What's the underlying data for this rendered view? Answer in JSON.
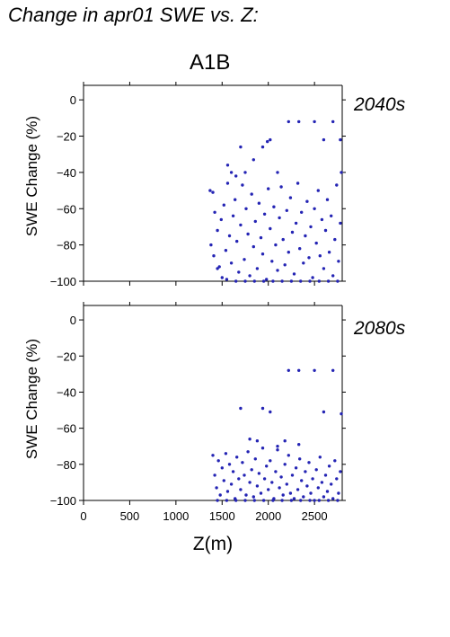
{
  "figure_title": "Change in apr01 SWE vs. Z:",
  "scenario": "A1B",
  "xlabel": "Z(m)",
  "point_color": "#2424b4",
  "chart_data": [
    {
      "type": "scatter",
      "period": "2040s",
      "ylabel": "SWE Change (%)",
      "xlim": [
        0,
        2800
      ],
      "ylim": [
        -100,
        8
      ],
      "x_ticks": [
        0,
        500,
        1000,
        1500,
        2000,
        2500
      ],
      "y_ticks": [
        0,
        -20,
        -40,
        -60,
        -80,
        -100
      ],
      "grid": false,
      "points": [
        [
          1370,
          -50
        ],
        [
          1400,
          -51
        ],
        [
          1420,
          -62
        ],
        [
          1380,
          -80
        ],
        [
          1410,
          -86
        ],
        [
          1450,
          -72
        ],
        [
          1470,
          -92
        ],
        [
          1490,
          -66
        ],
        [
          1500,
          -98
        ],
        [
          1520,
          -58
        ],
        [
          1540,
          -83
        ],
        [
          1560,
          -46
        ],
        [
          1580,
          -75
        ],
        [
          1600,
          -90
        ],
        [
          1620,
          -64
        ],
        [
          1640,
          -55
        ],
        [
          1660,
          -78
        ],
        [
          1680,
          -95
        ],
        [
          1700,
          -69
        ],
        [
          1720,
          -47
        ],
        [
          1740,
          -88
        ],
        [
          1760,
          -60
        ],
        [
          1780,
          -74
        ],
        [
          1800,
          -97
        ],
        [
          1820,
          -52
        ],
        [
          1840,
          -81
        ],
        [
          1860,
          -67
        ],
        [
          1880,
          -93
        ],
        [
          1900,
          -57
        ],
        [
          1920,
          -76
        ],
        [
          1940,
          -85
        ],
        [
          1960,
          -63
        ],
        [
          1980,
          -99
        ],
        [
          2000,
          -49
        ],
        [
          2020,
          -71
        ],
        [
          2040,
          -89
        ],
        [
          2060,
          -59
        ],
        [
          2080,
          -80
        ],
        [
          2100,
          -94
        ],
        [
          2120,
          -65
        ],
        [
          2140,
          -48
        ],
        [
          2160,
          -77
        ],
        [
          2180,
          -91
        ],
        [
          2200,
          -61
        ],
        [
          2220,
          -84
        ],
        [
          2240,
          -54
        ],
        [
          2260,
          -73
        ],
        [
          2280,
          -96
        ],
        [
          2300,
          -68
        ],
        [
          2320,
          -46
        ],
        [
          2340,
          -82
        ],
        [
          2360,
          -62
        ],
        [
          2380,
          -90
        ],
        [
          2400,
          -75
        ],
        [
          2420,
          -56
        ],
        [
          2440,
          -87
        ],
        [
          2460,
          -70
        ],
        [
          2480,
          -98
        ],
        [
          2500,
          -60
        ],
        [
          2520,
          -79
        ],
        [
          2540,
          -50
        ],
        [
          2560,
          -86
        ],
        [
          2580,
          -66
        ],
        [
          2600,
          -93
        ],
        [
          2620,
          -72
        ],
        [
          2640,
          -55
        ],
        [
          2660,
          -84
        ],
        [
          2680,
          -64
        ],
        [
          2700,
          -97
        ],
        [
          2720,
          -77
        ],
        [
          2740,
          -47
        ],
        [
          2760,
          -89
        ],
        [
          2780,
          -68
        ],
        [
          1700,
          -26
        ],
        [
          1840,
          -33
        ],
        [
          1940,
          -26
        ],
        [
          1990,
          -23
        ],
        [
          2020,
          -22
        ],
        [
          2220,
          -12
        ],
        [
          2330,
          -12
        ],
        [
          2500,
          -12
        ],
        [
          2700,
          -12
        ],
        [
          2600,
          -22
        ],
        [
          2780,
          -22
        ],
        [
          2790,
          -40
        ],
        [
          1560,
          -36
        ],
        [
          1600,
          -40
        ],
        [
          1650,
          -42
        ],
        [
          1750,
          -40
        ],
        [
          2100,
          -40
        ],
        [
          1450,
          -93
        ],
        [
          1550,
          -99
        ],
        [
          1650,
          -100
        ],
        [
          1750,
          -100
        ],
        [
          1850,
          -100
        ],
        [
          1950,
          -100
        ],
        [
          2050,
          -100
        ],
        [
          2150,
          -100
        ],
        [
          2250,
          -100
        ],
        [
          2350,
          -100
        ],
        [
          2450,
          -100
        ],
        [
          2550,
          -100
        ],
        [
          2650,
          -100
        ],
        [
          2750,
          -100
        ]
      ]
    },
    {
      "type": "scatter",
      "period": "2080s",
      "ylabel": "SWE Change (%)",
      "xlim": [
        0,
        2800
      ],
      "ylim": [
        -100,
        8
      ],
      "x_ticks": [
        0,
        500,
        1000,
        1500,
        2000,
        2500
      ],
      "y_ticks": [
        0,
        -20,
        -40,
        -60,
        -80,
        -100
      ],
      "grid": false,
      "points": [
        [
          1400,
          -75
        ],
        [
          1420,
          -86
        ],
        [
          1440,
          -93
        ],
        [
          1460,
          -78
        ],
        [
          1480,
          -97
        ],
        [
          1500,
          -82
        ],
        [
          1520,
          -89
        ],
        [
          1540,
          -74
        ],
        [
          1560,
          -95
        ],
        [
          1580,
          -80
        ],
        [
          1600,
          -91
        ],
        [
          1620,
          -84
        ],
        [
          1640,
          -99
        ],
        [
          1660,
          -76
        ],
        [
          1680,
          -88
        ],
        [
          1700,
          -94
        ],
        [
          1720,
          -79
        ],
        [
          1740,
          -86
        ],
        [
          1760,
          -97
        ],
        [
          1780,
          -73
        ],
        [
          1800,
          -90
        ],
        [
          1820,
          -83
        ],
        [
          1840,
          -98
        ],
        [
          1860,
          -77
        ],
        [
          1880,
          -92
        ],
        [
          1900,
          -85
        ],
        [
          1920,
          -96
        ],
        [
          1940,
          -71
        ],
        [
          1960,
          -88
        ],
        [
          1980,
          -81
        ],
        [
          2000,
          -94
        ],
        [
          2020,
          -78
        ],
        [
          2040,
          -90
        ],
        [
          2060,
          -99
        ],
        [
          2080,
          -84
        ],
        [
          2100,
          -72
        ],
        [
          2120,
          -93
        ],
        [
          2140,
          -87
        ],
        [
          2160,
          -97
        ],
        [
          2180,
          -80
        ],
        [
          2200,
          -91
        ],
        [
          2220,
          -75
        ],
        [
          2240,
          -96
        ],
        [
          2260,
          -86
        ],
        [
          2280,
          -99
        ],
        [
          2300,
          -82
        ],
        [
          2320,
          -94
        ],
        [
          2340,
          -77
        ],
        [
          2360,
          -89
        ],
        [
          2380,
          -98
        ],
        [
          2400,
          -84
        ],
        [
          2420,
          -92
        ],
        [
          2440,
          -79
        ],
        [
          2460,
          -96
        ],
        [
          2480,
          -88
        ],
        [
          2500,
          -100
        ],
        [
          2520,
          -83
        ],
        [
          2540,
          -93
        ],
        [
          2560,
          -76
        ],
        [
          2580,
          -90
        ],
        [
          2600,
          -98
        ],
        [
          2620,
          -86
        ],
        [
          2640,
          -95
        ],
        [
          2660,
          -81
        ],
        [
          2680,
          -91
        ],
        [
          2700,
          -99
        ],
        [
          2720,
          -78
        ],
        [
          2740,
          -88
        ],
        [
          2760,
          -96
        ],
        [
          2780,
          -84
        ],
        [
          1700,
          -49
        ],
        [
          1940,
          -49
        ],
        [
          2020,
          -51
        ],
        [
          2220,
          -28
        ],
        [
          2330,
          -28
        ],
        [
          2500,
          -28
        ],
        [
          2700,
          -28
        ],
        [
          2790,
          -52
        ],
        [
          2600,
          -51
        ],
        [
          1800,
          -66
        ],
        [
          1880,
          -67
        ],
        [
          2100,
          -70
        ],
        [
          2180,
          -67
        ],
        [
          2330,
          -69
        ],
        [
          1450,
          -100
        ],
        [
          1550,
          -100
        ],
        [
          1650,
          -100
        ],
        [
          1750,
          -100
        ],
        [
          1850,
          -100
        ],
        [
          1950,
          -100
        ],
        [
          2050,
          -100
        ],
        [
          2150,
          -100
        ],
        [
          2250,
          -100
        ],
        [
          2350,
          -100
        ],
        [
          2450,
          -100
        ],
        [
          2550,
          -100
        ],
        [
          2650,
          -100
        ],
        [
          2750,
          -100
        ]
      ]
    }
  ]
}
